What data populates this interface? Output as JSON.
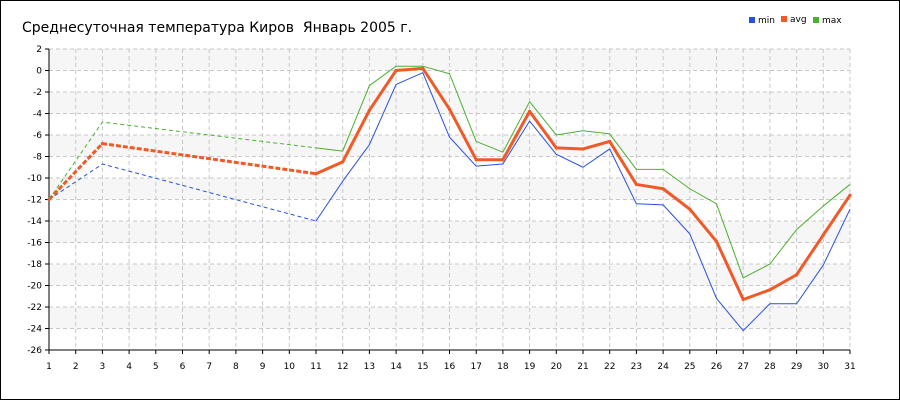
{
  "title": "Среднесуточная температура Киров  Январь 2005 г.",
  "legend": [
    {
      "label": "min",
      "color": "#2850e0"
    },
    {
      "label": "avg",
      "color": "#f05a28"
    },
    {
      "label": "max",
      "color": "#4cb030"
    }
  ],
  "chart_data": {
    "type": "line",
    "title": "Среднесуточная температура Киров  Январь 2005 г.",
    "x": [
      1,
      2,
      3,
      4,
      5,
      6,
      7,
      8,
      9,
      10,
      11,
      12,
      13,
      14,
      15,
      16,
      17,
      18,
      19,
      20,
      21,
      22,
      23,
      24,
      25,
      26,
      27,
      28,
      29,
      30,
      31
    ],
    "xlim": [
      1,
      31
    ],
    "ylim": [
      -26,
      2
    ],
    "yticks": [
      2,
      0,
      -2,
      -4,
      -6,
      -8,
      -10,
      -12,
      -14,
      -16,
      -18,
      -20,
      -22,
      -24,
      -26
    ],
    "grid": true,
    "legend_position": "top-right",
    "dashed_until_x": 11,
    "series": [
      {
        "name": "min",
        "color": "#2850e0",
        "values": [
          -12,
          null,
          -8.7,
          null,
          null,
          null,
          null,
          null,
          null,
          null,
          -14,
          -10.3,
          -6.9,
          -1.3,
          -0.2,
          -6.2,
          -8.9,
          -8.7,
          -4.7,
          -7.8,
          -9,
          -7.3,
          -12.4,
          -12.5,
          -15.2,
          -21.2,
          -24.2,
          -21.7,
          -21.7,
          -18.1,
          -12.9
        ]
      },
      {
        "name": "avg",
        "color": "#f05a28",
        "values": [
          -12,
          null,
          -6.8,
          null,
          null,
          null,
          null,
          null,
          null,
          null,
          -9.6,
          -8.5,
          -3.7,
          0,
          0.2,
          -3.6,
          -8.3,
          -8.3,
          -3.8,
          -7.2,
          -7.3,
          -6.6,
          -10.6,
          -11,
          -12.9,
          -15.9,
          -21.3,
          -20.4,
          -19,
          -15.3,
          -11.6
        ]
      },
      {
        "name": "max",
        "color": "#4cb030",
        "values": [
          -12,
          null,
          -4.8,
          null,
          null,
          null,
          null,
          null,
          null,
          null,
          -7.2,
          -7.5,
          -1.4,
          0.4,
          0.4,
          -0.3,
          -6.6,
          -7.6,
          -2.9,
          -6,
          -5.6,
          -5.9,
          -9.2,
          -9.2,
          -11,
          -12.4,
          -19.3,
          -18,
          -14.8,
          -12.6,
          -10.6
        ]
      }
    ]
  }
}
